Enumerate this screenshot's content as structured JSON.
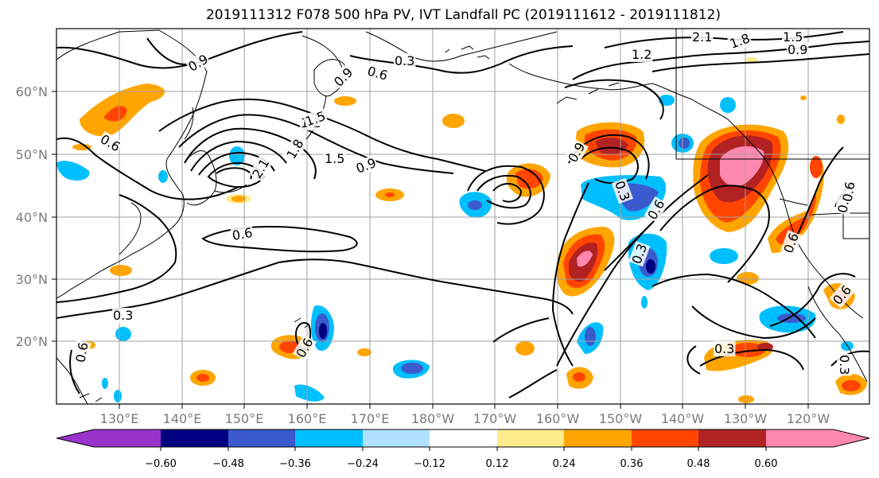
{
  "title": "2019111312 F078 500 hPa PV, IVT Landfall PC (2019111612 - 2019111812)",
  "lat_labels": [
    "60°N",
    "50°N",
    "40°N",
    "30°N",
    "20°N"
  ],
  "lon_labels": [
    "130°E",
    "140°E",
    "150°E",
    "160°E",
    "170°E",
    "180°W",
    "170°W",
    "160°W",
    "150°W",
    "140°W",
    "130°W",
    "120°W"
  ],
  "colorbar": {
    "ticks": [
      "−0.60",
      "−0.48",
      "−0.36",
      "−0.24",
      "−0.12",
      "0.12",
      "0.24",
      "0.36",
      "0.48",
      "0.60"
    ],
    "colors": [
      "#9933cc",
      "#000080",
      "#3a5acd",
      "#00bfff",
      "#b0e2ff",
      "#ffffff",
      "#ffec8b",
      "#ffa500",
      "#ff4500",
      "#b22222",
      "#ff88b0",
      "#ff88b0"
    ]
  },
  "contour_labels": [
    "0.9",
    "0.3",
    "0.6",
    "0.9",
    "1.2",
    "1.5",
    "2.1",
    "1.8",
    "1.5",
    "0.9",
    "0.6",
    "0.6",
    "0.3",
    "0.6",
    "0.9",
    "0.3",
    "0.6",
    "0.3",
    "1.2",
    "0.3",
    "0.6",
    "0.9",
    "2.1",
    "1.8",
    "1.5",
    "0.9",
    "0.6",
    "0.3",
    "0.6",
    "0.6"
  ]
}
